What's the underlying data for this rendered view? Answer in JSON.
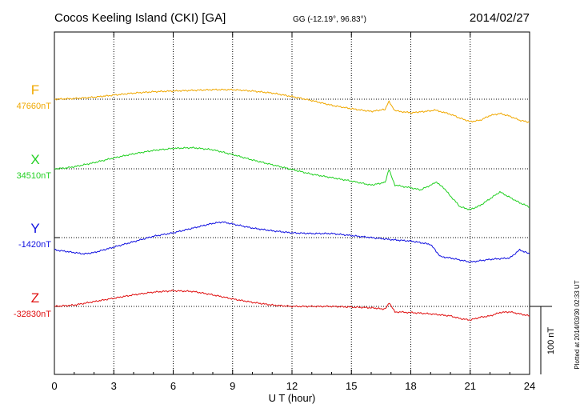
{
  "header": {
    "station": "Cocos Keeling Island (CKI)  [GA]",
    "coords": "GG (-12.19°,  96.83°)",
    "date": "2014/02/27"
  },
  "plotted_note": "Plotted at 2014/03/30 02:33 UT",
  "scale_label": "100 nT",
  "chart_data": {
    "type": "line",
    "xlabel": "U T (hour)",
    "xlim": [
      0,
      24
    ],
    "x_ticks": [
      "0",
      "3",
      "6",
      "9",
      "12",
      "15",
      "18",
      "21",
      "24"
    ],
    "grid": true,
    "y_units": "nT offset from baseline",
    "scale_nT": 100,
    "series": [
      {
        "name": "F",
        "baseline_label": "47660nT",
        "color": "#f0a800",
        "x": [
          0,
          1,
          2,
          3,
          4,
          5,
          6,
          7,
          8,
          9,
          10,
          11,
          12,
          13,
          14,
          15,
          16,
          16.7,
          16.9,
          17.2,
          18,
          18.7,
          19.3,
          19.6,
          20,
          20.5,
          21,
          21.5,
          22,
          22.5,
          23,
          23.5,
          24
        ],
        "y": [
          0,
          1,
          3,
          6,
          9,
          11,
          12,
          13,
          14,
          14,
          12,
          9,
          4,
          -2,
          -9,
          -14,
          -18,
          -15,
          -3,
          -17,
          -20,
          -18,
          -16,
          -19,
          -22,
          -28,
          -33,
          -31,
          -24,
          -21,
          -25,
          -31,
          -34
        ]
      },
      {
        "name": "X",
        "baseline_label": "34510nT",
        "color": "#22d022",
        "x": [
          0,
          0.5,
          1,
          2,
          3,
          4,
          5,
          6,
          7,
          8,
          9,
          10,
          11,
          12,
          13,
          14,
          15,
          16,
          16.7,
          16.9,
          17.2,
          18,
          18.5,
          19,
          19.3,
          19.6,
          20,
          20.5,
          21,
          21.5,
          22,
          22.5,
          23,
          23.5,
          24
        ],
        "y": [
          0,
          1,
          3,
          9,
          16,
          22,
          27,
          30,
          31,
          28,
          21,
          13,
          6,
          -1,
          -8,
          -13,
          -18,
          -24,
          -20,
          -1,
          -24,
          -28,
          -31,
          -24,
          -20,
          -26,
          -40,
          -56,
          -60,
          -54,
          -44,
          -34,
          -42,
          -50,
          -56
        ]
      },
      {
        "name": "Y",
        "baseline_label": "-1420nT",
        "color": "#1010e0",
        "x": [
          0,
          0.5,
          1,
          1.5,
          2,
          3,
          4,
          5,
          6,
          7,
          8,
          8.5,
          9,
          10,
          11,
          12,
          13,
          14,
          15,
          16,
          17,
          18,
          19,
          19.5,
          20,
          21,
          22,
          23,
          23.5,
          24
        ],
        "y": [
          -18,
          -20,
          -22,
          -24,
          -22,
          -14,
          -6,
          2,
          7,
          14,
          21,
          23,
          20,
          14,
          10,
          7,
          6,
          6,
          3,
          0,
          -3,
          -5,
          -10,
          -28,
          -30,
          -36,
          -32,
          -30,
          -18,
          -24
        ]
      },
      {
        "name": "Z",
        "baseline_label": "-32830nT",
        "color": "#e01010",
        "x": [
          0,
          1,
          2,
          3,
          4,
          5,
          6,
          7,
          8,
          9,
          10,
          11,
          12,
          13,
          14,
          15,
          16,
          16.7,
          16.9,
          17.2,
          18,
          19,
          20,
          20.5,
          21,
          21.5,
          22,
          22.5,
          23,
          24
        ],
        "y": [
          0,
          2,
          7,
          12,
          17,
          21,
          23,
          22,
          17,
          11,
          6,
          2,
          0,
          0,
          0,
          -1,
          -2,
          -4,
          5,
          -8,
          -9,
          -11,
          -14,
          -18,
          -20,
          -16,
          -14,
          -9,
          -8,
          -14
        ]
      }
    ]
  }
}
